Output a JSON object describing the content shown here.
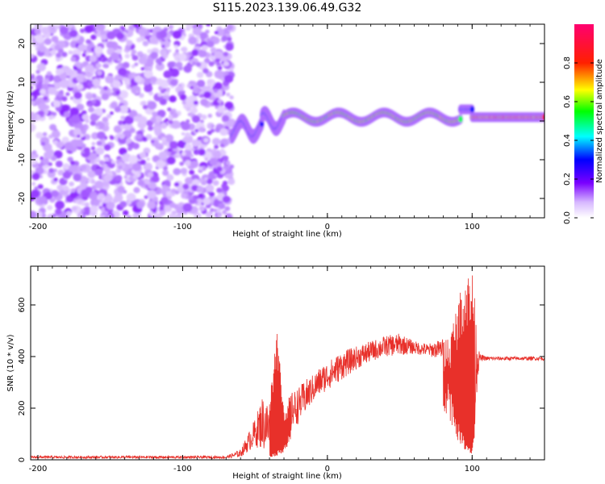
{
  "title": "S115.2023.139.06.49.G32",
  "chart_data": [
    {
      "type": "heatmap",
      "title": "S115.2023.139.06.49.G32",
      "xlabel": "Height of straight line (km)",
      "ylabel": "Frequency (Hz)",
      "xlim": [
        -205,
        150
      ],
      "ylim": [
        -25,
        25
      ],
      "xticks": [
        -200,
        -100,
        0,
        100
      ],
      "yticks": [
        -20,
        -10,
        0,
        10,
        20
      ],
      "colorbar": {
        "label": "Normalized spectral amplitude",
        "range": [
          0.0,
          1.0
        ],
        "ticks": [
          0.0,
          0.2,
          0.4,
          0.6,
          0.8
        ],
        "colormap": [
          "#ffffff",
          "#b57cff",
          "#7a00ff",
          "#0000ff",
          "#00ffff",
          "#00ff00",
          "#ffff00",
          "#ff0000",
          "#ff0080"
        ]
      },
      "regions": [
        {
          "x": [
            -205,
            -66
          ],
          "description_kind": "scattered noise",
          "y": [
            -25,
            25
          ],
          "level": 0.15
        },
        {
          "x": [
            -66,
            -30
          ],
          "center_hz": 0,
          "level": 0.4
        },
        {
          "x": [
            -30,
            92
          ],
          "center_hz": 1,
          "level": 0.7
        },
        {
          "x": [
            92,
            100
          ],
          "center_hz": 3,
          "level": 0.4
        },
        {
          "x": [
            100,
            150
          ],
          "center_hz": 1,
          "level": 0.85
        }
      ],
      "grid": false
    },
    {
      "type": "line",
      "xlabel": "Height of straight line (km)",
      "ylabel": "SNR (10 * v/v)",
      "xlim": [
        -205,
        150
      ],
      "ylim": [
        0,
        750
      ],
      "xticks": [
        -200,
        -100,
        0,
        100
      ],
      "yticks": [
        0,
        200,
        400,
        600
      ],
      "color": "#e8302a",
      "grid": false,
      "envelope": {
        "x": [
          -205,
          -70,
          -60,
          -55,
          -50,
          -45,
          -40,
          -35,
          -30,
          -25,
          -20,
          -15,
          -10,
          -5,
          0,
          10,
          20,
          30,
          40,
          50,
          60,
          70,
          80,
          85,
          90,
          95,
          100,
          105,
          110,
          120,
          130,
          140,
          150
        ],
        "low": [
          5,
          5,
          10,
          30,
          50,
          40,
          20,
          30,
          60,
          120,
          140,
          180,
          220,
          250,
          270,
          310,
          350,
          380,
          400,
          405,
          410,
          400,
          390,
          300,
          150,
          80,
          40,
          380,
          385,
          385,
          385,
          385,
          385
        ],
        "high": [
          15,
          15,
          40,
          100,
          160,
          250,
          220,
          530,
          200,
          260,
          280,
          310,
          330,
          360,
          380,
          420,
          440,
          460,
          480,
          490,
          460,
          450,
          470,
          500,
          620,
          720,
          740,
          410,
          400,
          400,
          400,
          400,
          400
        ]
      }
    }
  ]
}
